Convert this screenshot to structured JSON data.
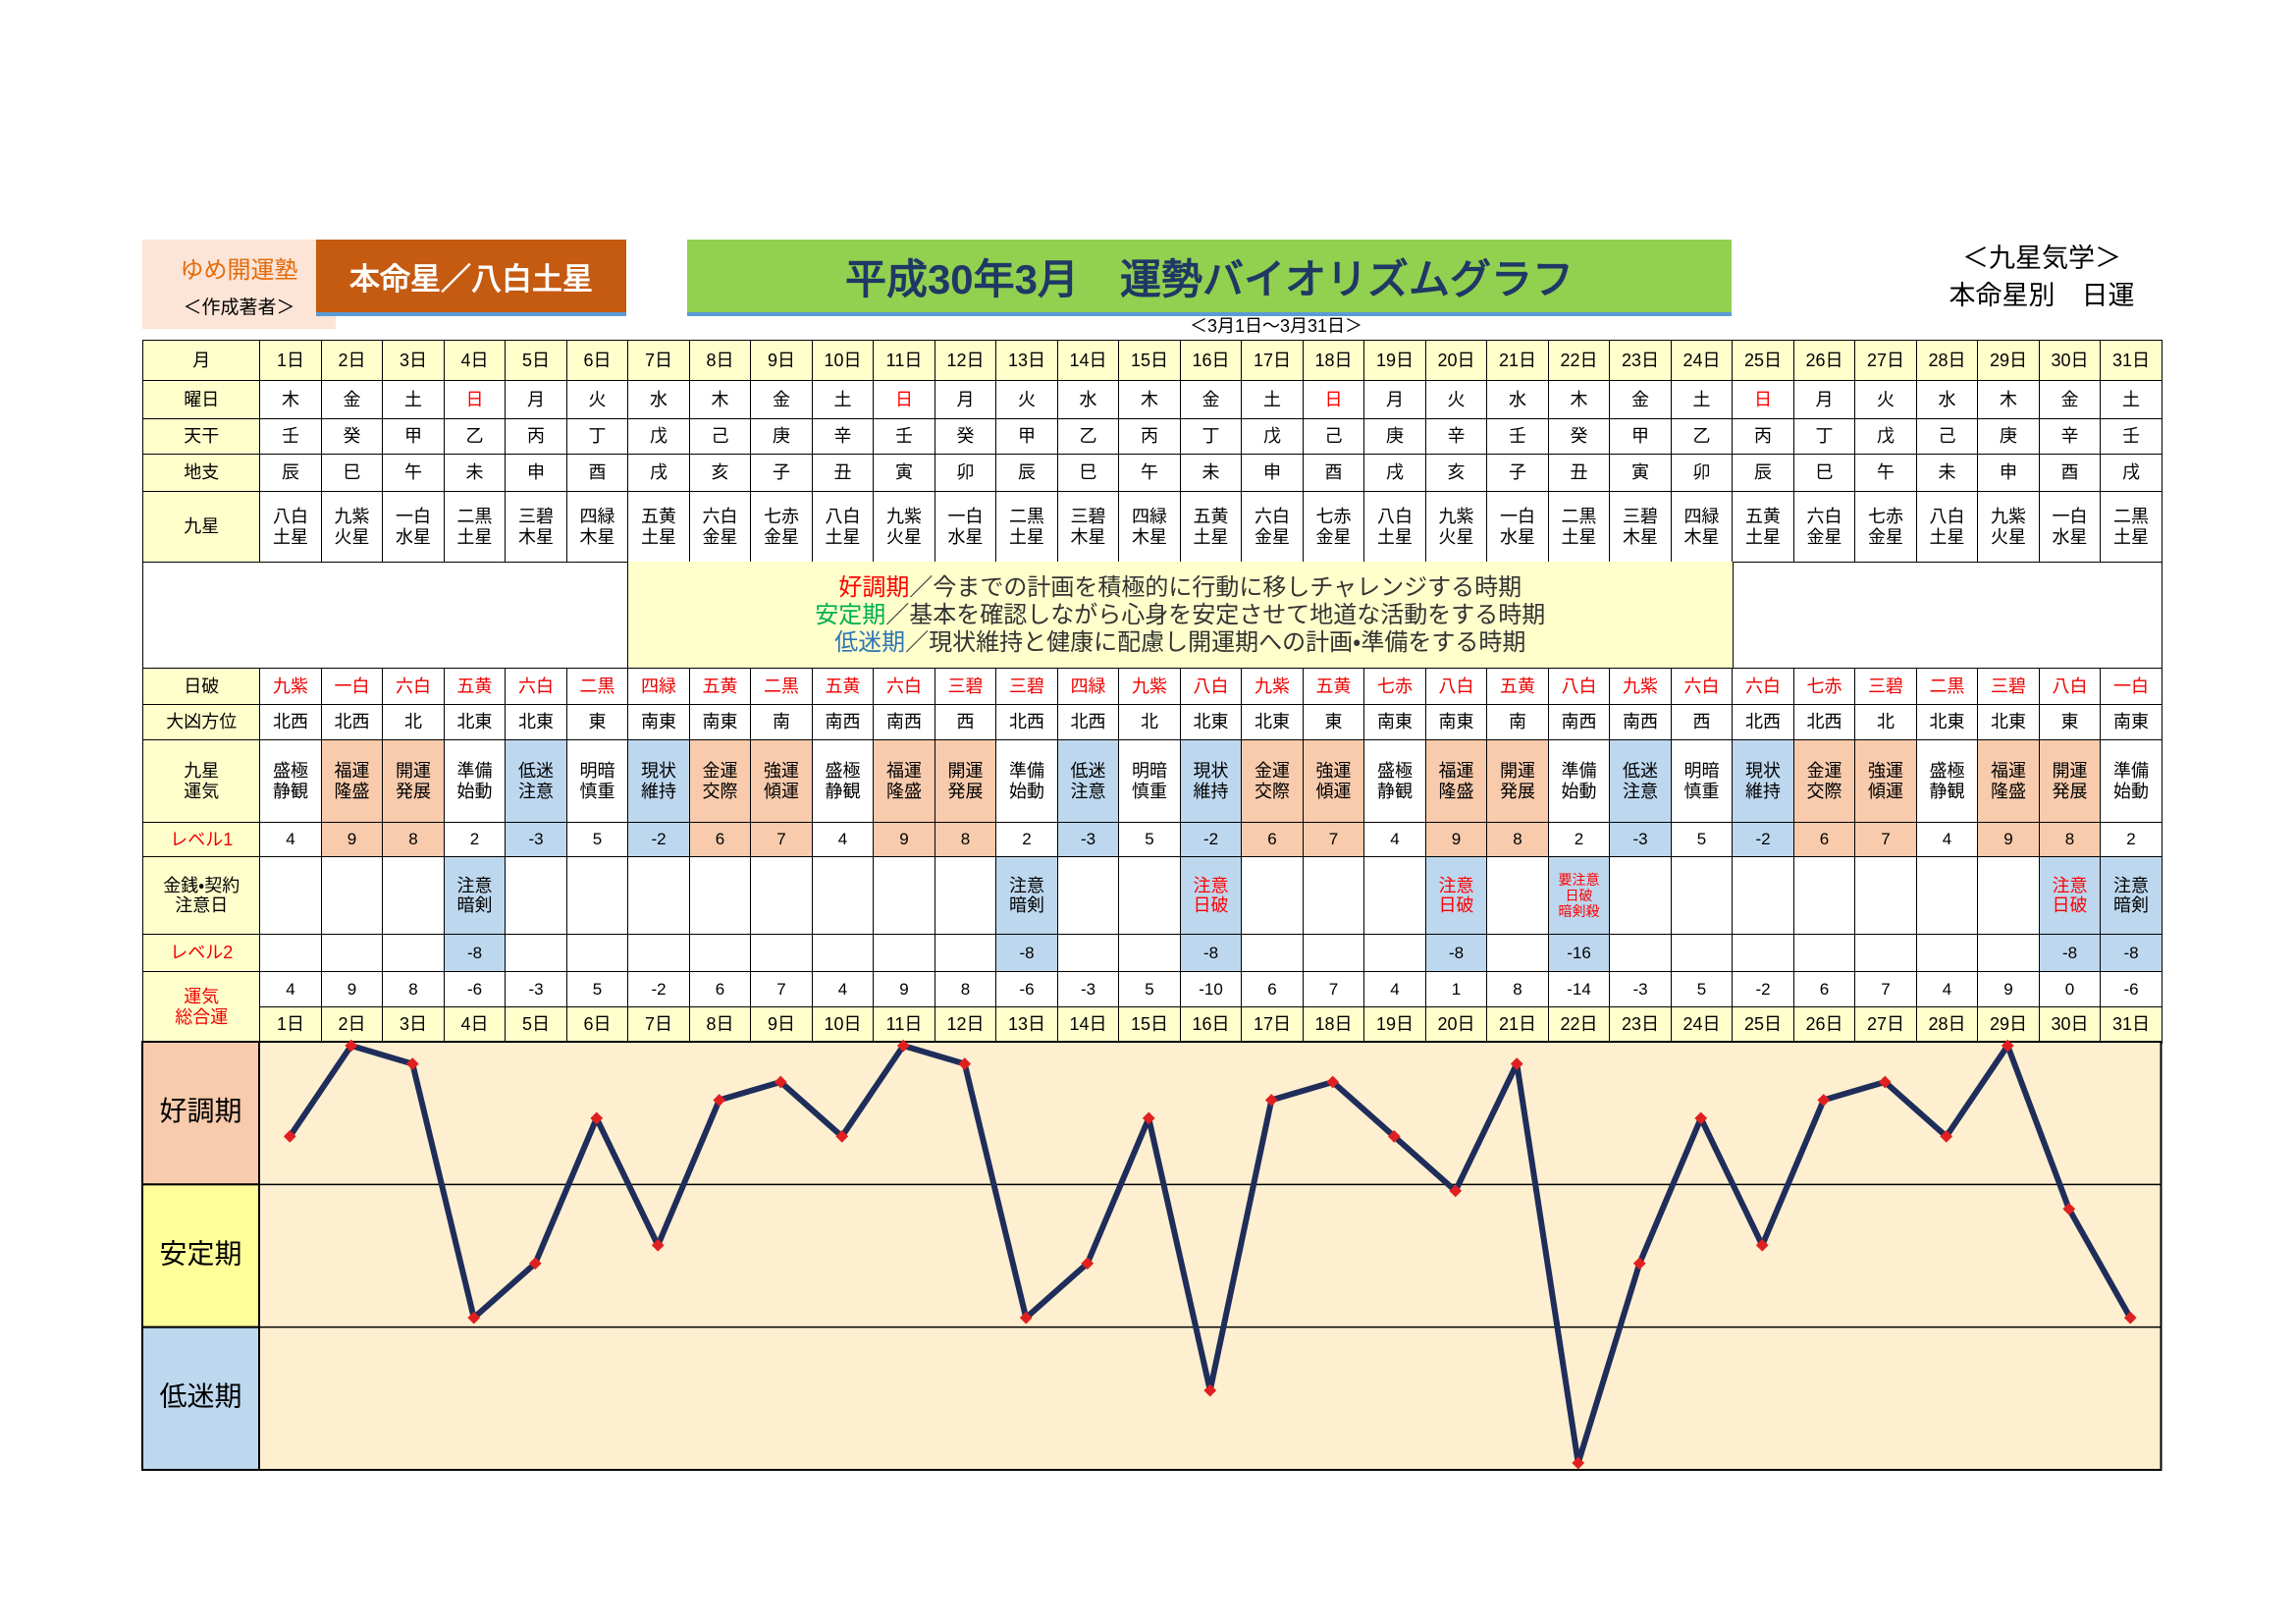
{
  "header": {
    "school": "ゆめ開運塾",
    "author": "＜作成著者＞",
    "honmei": "本命星／八白土星",
    "title": "平成30年3月　運勢バイオリズムグラフ",
    "period": "＜3月1日～3月31日＞",
    "genre": "＜九星気学＞",
    "kind": "本命星別　日運"
  },
  "table": {
    "labels": {
      "month": [
        "月"
      ],
      "weekday": [
        "曜日"
      ],
      "stem": [
        "天干"
      ],
      "branch": [
        "地支"
      ],
      "star": [
        "九星"
      ],
      "nippa": [
        "日破"
      ],
      "direction": [
        "大凶方位"
      ],
      "kiun": [
        "九星",
        "運気"
      ],
      "level1": [
        "レベル1"
      ],
      "notes": [
        "金銭・契約",
        "注意日"
      ],
      "level2": [
        "レベル2"
      ],
      "total": [
        "運気",
        "総合運"
      ]
    },
    "days": [
      "1日",
      "2日",
      "3日",
      "4日",
      "5日",
      "6日",
      "7日",
      "8日",
      "9日",
      "10日",
      "11日",
      "12日",
      "13日",
      "14日",
      "15日",
      "16日",
      "17日",
      "18日",
      "19日",
      "20日",
      "21日",
      "22日",
      "23日",
      "24日",
      "25日",
      "26日",
      "27日",
      "28日",
      "29日",
      "30日",
      "31日"
    ],
    "weekdays": [
      "木",
      "金",
      "土",
      "日",
      "月",
      "火",
      "水",
      "木",
      "金",
      "土",
      "日",
      "月",
      "火",
      "水",
      "木",
      "金",
      "土",
      "日",
      "月",
      "火",
      "水",
      "木",
      "金",
      "土",
      "日",
      "月",
      "火",
      "水",
      "木",
      "金",
      "土"
    ],
    "weekday_colors": [
      "#000",
      "#000",
      "#000",
      "#f00",
      "#000",
      "#000",
      "#000",
      "#000",
      "#000",
      "#000",
      "#f00",
      "#000",
      "#000",
      "#000",
      "#000",
      "#000",
      "#000",
      "#f00",
      "#000",
      "#000",
      "#000",
      "#000",
      "#000",
      "#000",
      "#f00",
      "#000",
      "#000",
      "#000",
      "#000",
      "#000",
      "#000"
    ],
    "stems": [
      "壬",
      "癸",
      "甲",
      "乙",
      "丙",
      "丁",
      "戊",
      "己",
      "庚",
      "辛",
      "壬",
      "癸",
      "甲",
      "乙",
      "丙",
      "丁",
      "戊",
      "己",
      "庚",
      "辛",
      "壬",
      "癸",
      "甲",
      "乙",
      "丙",
      "丁",
      "戊",
      "己",
      "庚",
      "辛",
      "壬"
    ],
    "branches": [
      "辰",
      "巳",
      "午",
      "未",
      "申",
      "酉",
      "戌",
      "亥",
      "子",
      "丑",
      "寅",
      "卯",
      "辰",
      "巳",
      "午",
      "未",
      "申",
      "酉",
      "戌",
      "亥",
      "子",
      "丑",
      "寅",
      "卯",
      "辰",
      "巳",
      "午",
      "未",
      "申",
      "酉",
      "戌"
    ],
    "stars": [
      "八白土星",
      "九紫火星",
      "一白水星",
      "二黒土星",
      "三碧木星",
      "四緑木星",
      "五黄土星",
      "六白金星",
      "七赤金星",
      "八白土星",
      "九紫火星",
      "一白水星",
      "二黒土星",
      "三碧木星",
      "四緑木星",
      "五黄土星",
      "六白金星",
      "七赤金星",
      "八白土星",
      "九紫火星",
      "一白水星",
      "二黒土星",
      "三碧木星",
      "四緑木星",
      "五黄土星",
      "六白金星",
      "七赤金星",
      "八白土星",
      "九紫火星",
      "一白水星",
      "二黒土星"
    ],
    "nippa": [
      "九紫",
      "一白",
      "六白",
      "五黄",
      "六白",
      "二黒",
      "四緑",
      "五黄",
      "二黒",
      "五黄",
      "六白",
      "三碧",
      "三碧",
      "四緑",
      "九紫",
      "八白",
      "九紫",
      "五黄",
      "七赤",
      "八白",
      "五黄",
      "八白",
      "九紫",
      "六白",
      "六白",
      "七赤",
      "三碧",
      "二黒",
      "三碧",
      "八白",
      "一白"
    ],
    "directions": [
      "北西",
      "北西",
      "北",
      "北東",
      "北東",
      "東",
      "南東",
      "南東",
      "南",
      "南西",
      "南西",
      "西",
      "北西",
      "北西",
      "北",
      "北東",
      "北東",
      "東",
      "南東",
      "南東",
      "南",
      "南西",
      "南西",
      "西",
      "北西",
      "北西",
      "北",
      "北東",
      "北東",
      "東",
      "南東"
    ],
    "kiun": [
      "盛極静観",
      "福運隆盛",
      "開運発展",
      "準備始動",
      "低迷注意",
      "明暗慎重",
      "現状維持",
      "金運交際",
      "強運傾運",
      "盛極静観",
      "福運隆盛",
      "開運発展",
      "準備始動",
      "低迷注意",
      "明暗慎重",
      "現状維持",
      "金運交際",
      "強運傾運",
      "盛極静観",
      "福運隆盛",
      "開運発展",
      "準備始動",
      "低迷注意",
      "明暗慎重",
      "現状維持",
      "金運交際",
      "強運傾運",
      "盛極静観",
      "福運隆盛",
      "開運発展",
      "準備始動"
    ],
    "tones": [
      "#fff",
      "#f8cbad",
      "#f8cbad",
      "#fff",
      "#bdd7ee",
      "#fff",
      "#bdd7ee",
      "#f8cbad",
      "#f8cbad",
      "#fff",
      "#f8cbad",
      "#f8cbad",
      "#fff",
      "#bdd7ee",
      "#fff",
      "#bdd7ee",
      "#f8cbad",
      "#f8cbad",
      "#fff",
      "#f8cbad",
      "#f8cbad",
      "#fff",
      "#bdd7ee",
      "#fff",
      "#bdd7ee",
      "#f8cbad",
      "#f8cbad",
      "#fff",
      "#f8cbad",
      "#f8cbad",
      "#fff"
    ],
    "level1": [
      4,
      9,
      8,
      2,
      -3,
      5,
      -2,
      6,
      7,
      4,
      9,
      8,
      2,
      -3,
      5,
      -2,
      6,
      7,
      4,
      9,
      8,
      2,
      -3,
      5,
      -2,
      6,
      7,
      4,
      9,
      8,
      2
    ],
    "notes": [
      null,
      null,
      null,
      {
        "lines": [
          "注意",
          "暗剣"
        ],
        "color": "#000"
      },
      null,
      null,
      null,
      null,
      null,
      null,
      null,
      null,
      {
        "lines": [
          "注意",
          "暗剣"
        ],
        "color": "#000"
      },
      null,
      null,
      {
        "lines": [
          "注意",
          "日破"
        ],
        "color": "#f00"
      },
      null,
      null,
      null,
      {
        "lines": [
          "注意",
          "日破"
        ],
        "color": "#f00"
      },
      null,
      {
        "lines": [
          "要注意",
          "日破",
          "暗剣殺"
        ],
        "color": "#f00"
      },
      null,
      null,
      null,
      null,
      null,
      null,
      null,
      {
        "lines": [
          "注意",
          "日破"
        ],
        "color": "#f00"
      },
      {
        "lines": [
          "注意",
          "暗剣"
        ],
        "color": "#000"
      }
    ],
    "level2": [
      null,
      null,
      null,
      -8,
      null,
      null,
      null,
      null,
      null,
      null,
      null,
      null,
      -8,
      null,
      null,
      -8,
      null,
      null,
      null,
      -8,
      null,
      -16,
      null,
      null,
      null,
      null,
      null,
      null,
      null,
      -8,
      -8
    ],
    "total": [
      4,
      9,
      8,
      -6,
      -3,
      5,
      -2,
      6,
      7,
      4,
      9,
      8,
      -6,
      -3,
      5,
      -10,
      6,
      7,
      4,
      1,
      8,
      -14,
      -3,
      5,
      -2,
      6,
      7,
      4,
      9,
      0,
      -6
    ]
  },
  "legend": [
    {
      "term": "好調期",
      "color": "#ff0000",
      "text": "／今までの計画を積極的に行動に移しチャレンジする時期"
    },
    {
      "term": "安定期",
      "color": "#00b050",
      "text": "／基本を確認しながら心身を安定させて地道な活動をする時期"
    },
    {
      "term": "低迷期",
      "color": "#2e75b6",
      "text": "／現状維持と健康に配慮し開運期への計画・準備をする時期"
    }
  ],
  "graph": {
    "labels": [
      "好調期",
      "安定期",
      "低迷期"
    ],
    "band_colors": [
      "#f8cbad",
      "#ffff99",
      "#bdd7ee"
    ],
    "ylim": [
      -14,
      9
    ],
    "line_color": "#1f2d5a",
    "point_color": "#e02020"
  }
}
